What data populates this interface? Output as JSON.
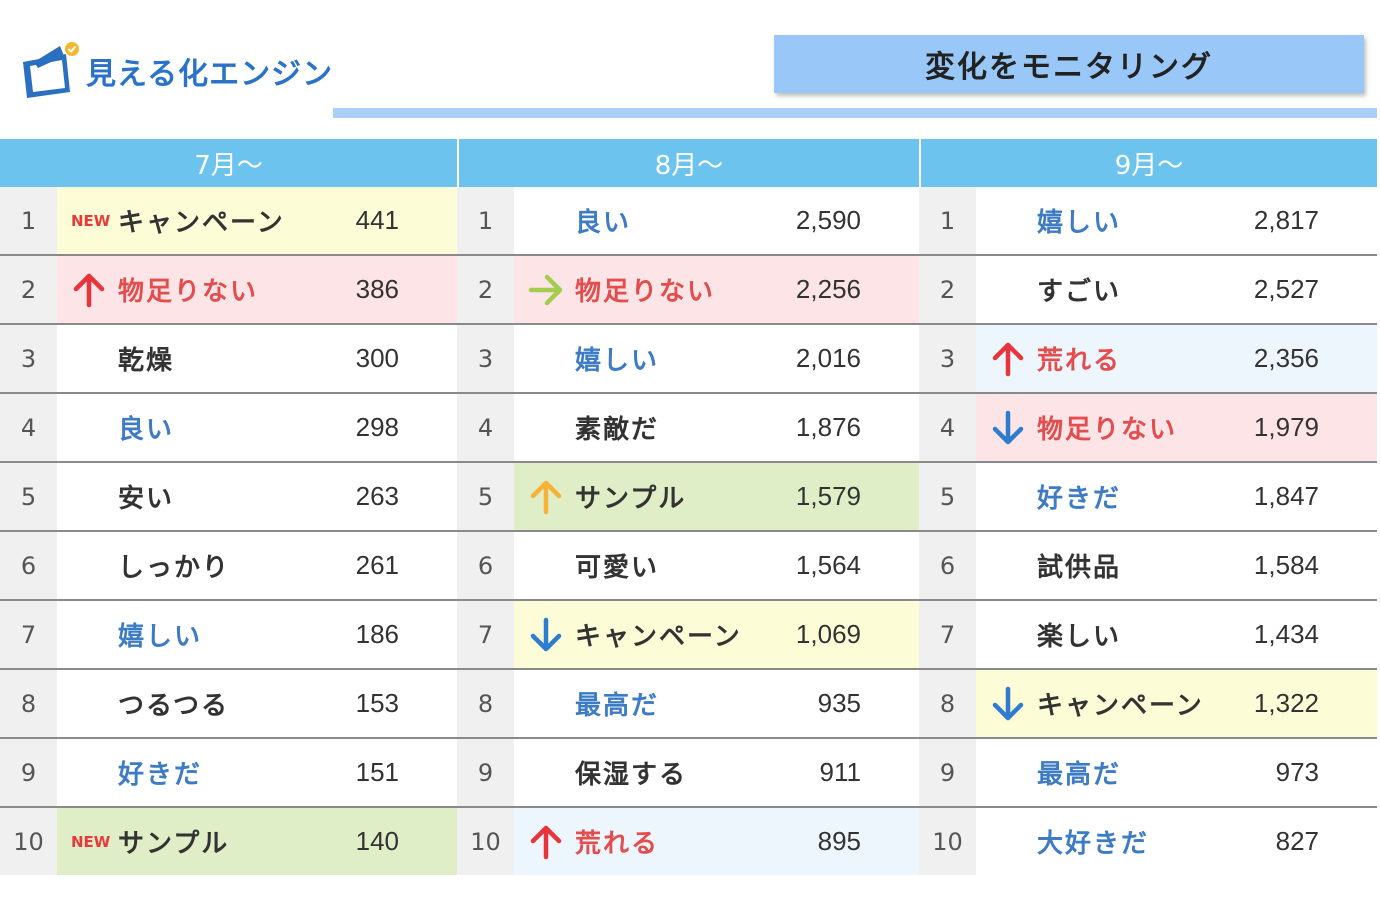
{
  "logo": {
    "text": "見える化エンジン"
  },
  "header": {
    "title": "変化をモニタリング"
  },
  "colors": {
    "accent": "#6cc4ee",
    "positive": "#3d7cc4",
    "negative": "#e34d4d",
    "neutral": "#333333"
  },
  "columns": [
    {
      "heading": "7月〜",
      "rows": [
        {
          "rank": "1",
          "word": "キャンペーン",
          "count": "441",
          "tone": "dark",
          "bg": "yellow",
          "badge": "NEW",
          "arrow": ""
        },
        {
          "rank": "2",
          "word": "物足りない",
          "count": "386",
          "tone": "red",
          "bg": "pink",
          "badge": "",
          "arrow": "up"
        },
        {
          "rank": "3",
          "word": "乾燥",
          "count": "300",
          "tone": "dark",
          "bg": "white",
          "badge": "",
          "arrow": ""
        },
        {
          "rank": "4",
          "word": "良い",
          "count": "298",
          "tone": "blue",
          "bg": "white",
          "badge": "",
          "arrow": ""
        },
        {
          "rank": "5",
          "word": "安い",
          "count": "263",
          "tone": "dark",
          "bg": "white",
          "badge": "",
          "arrow": ""
        },
        {
          "rank": "6",
          "word": "しっかり",
          "count": "261",
          "tone": "dark",
          "bg": "white",
          "badge": "",
          "arrow": ""
        },
        {
          "rank": "7",
          "word": "嬉しい",
          "count": "186",
          "tone": "blue",
          "bg": "white",
          "badge": "",
          "arrow": ""
        },
        {
          "rank": "8",
          "word": "つるつる",
          "count": "153",
          "tone": "dark",
          "bg": "white",
          "badge": "",
          "arrow": ""
        },
        {
          "rank": "9",
          "word": "好きだ",
          "count": "151",
          "tone": "blue",
          "bg": "white",
          "badge": "",
          "arrow": ""
        },
        {
          "rank": "10",
          "word": "サンプル",
          "count": "140",
          "tone": "dark",
          "bg": "green",
          "badge": "NEW",
          "arrow": ""
        }
      ]
    },
    {
      "heading": "8月〜",
      "rows": [
        {
          "rank": "1",
          "word": "良い",
          "count": "2,590",
          "tone": "blue",
          "bg": "white",
          "badge": "",
          "arrow": ""
        },
        {
          "rank": "2",
          "word": "物足りない",
          "count": "2,256",
          "tone": "red",
          "bg": "pink",
          "badge": "",
          "arrow": "right"
        },
        {
          "rank": "3",
          "word": "嬉しい",
          "count": "2,016",
          "tone": "blue",
          "bg": "white",
          "badge": "",
          "arrow": ""
        },
        {
          "rank": "4",
          "word": "素敵だ",
          "count": "1,876",
          "tone": "dark",
          "bg": "white",
          "badge": "",
          "arrow": ""
        },
        {
          "rank": "5",
          "word": "サンプル",
          "count": "1,579",
          "tone": "dark",
          "bg": "green",
          "badge": "",
          "arrow": "up-orange"
        },
        {
          "rank": "6",
          "word": "可愛い",
          "count": "1,564",
          "tone": "dark",
          "bg": "white",
          "badge": "",
          "arrow": ""
        },
        {
          "rank": "7",
          "word": "キャンペーン",
          "count": "1,069",
          "tone": "dark",
          "bg": "yellow",
          "badge": "",
          "arrow": "down"
        },
        {
          "rank": "8",
          "word": "最高だ",
          "count": "935",
          "tone": "blue",
          "bg": "white",
          "badge": "",
          "arrow": ""
        },
        {
          "rank": "9",
          "word": "保湿する",
          "count": "911",
          "tone": "dark",
          "bg": "white",
          "badge": "",
          "arrow": ""
        },
        {
          "rank": "10",
          "word": "荒れる",
          "count": "895",
          "tone": "red",
          "bg": "lightblue",
          "badge": "",
          "arrow": "up"
        }
      ]
    },
    {
      "heading": "9月〜",
      "rows": [
        {
          "rank": "1",
          "word": "嬉しい",
          "count": "2,817",
          "tone": "blue",
          "bg": "white",
          "badge": "",
          "arrow": ""
        },
        {
          "rank": "2",
          "word": "すごい",
          "count": "2,527",
          "tone": "dark",
          "bg": "white",
          "badge": "",
          "arrow": ""
        },
        {
          "rank": "3",
          "word": "荒れる",
          "count": "2,356",
          "tone": "red",
          "bg": "lightblue",
          "badge": "",
          "arrow": "up"
        },
        {
          "rank": "4",
          "word": "物足りない",
          "count": "1,979",
          "tone": "red",
          "bg": "pink",
          "badge": "",
          "arrow": "down"
        },
        {
          "rank": "5",
          "word": "好きだ",
          "count": "1,847",
          "tone": "blue",
          "bg": "white",
          "badge": "",
          "arrow": ""
        },
        {
          "rank": "6",
          "word": "試供品",
          "count": "1,584",
          "tone": "dark",
          "bg": "white",
          "badge": "",
          "arrow": ""
        },
        {
          "rank": "7",
          "word": "楽しい",
          "count": "1,434",
          "tone": "dark",
          "bg": "white",
          "badge": "",
          "arrow": ""
        },
        {
          "rank": "8",
          "word": "キャンペーン",
          "count": "1,322",
          "tone": "dark",
          "bg": "yellow",
          "badge": "",
          "arrow": "down"
        },
        {
          "rank": "9",
          "word": "最高だ",
          "count": "973",
          "tone": "blue",
          "bg": "white",
          "badge": "",
          "arrow": ""
        },
        {
          "rank": "10",
          "word": "大好きだ",
          "count": "827",
          "tone": "blue",
          "bg": "white",
          "badge": "",
          "arrow": ""
        }
      ]
    }
  ]
}
